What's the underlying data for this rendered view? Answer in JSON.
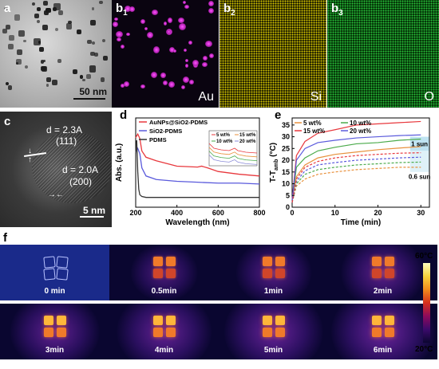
{
  "panels": {
    "a": {
      "label": "a",
      "scalebar": "50 nm"
    },
    "b1": {
      "label": "b",
      "sub": "1",
      "element": "Au"
    },
    "b2": {
      "label": "b",
      "sub": "2",
      "element": "Si"
    },
    "b3": {
      "label": "b",
      "sub": "3",
      "element": "O"
    },
    "c": {
      "label": "c",
      "d1": "d = 2.3A",
      "plane1": "(111)",
      "d2": "d = 2.0A",
      "plane2": "(200)",
      "scalebar": "5 nm"
    },
    "d": {
      "label": "d"
    },
    "e": {
      "label": "e"
    },
    "f": {
      "label": "f"
    }
  },
  "chart_data": [
    {
      "type": "line",
      "xlabel": "Wavelength (nm)",
      "ylabel": "Abs. (a.u.)",
      "xlim": [
        200,
        800
      ],
      "xticks": [
        "200",
        "400",
        "600",
        "800"
      ],
      "legend": [
        "AuNPs@SiO2-PDMS",
        "SiO2-PDMS",
        "PDMS"
      ],
      "series": [
        {
          "name": "AuNPs@SiO2-PDMS",
          "color": "#e8383d",
          "x": [
            200,
            210,
            220,
            230,
            250,
            300,
            400,
            500,
            520,
            550,
            600,
            700,
            800
          ],
          "y": [
            0.78,
            0.82,
            0.77,
            0.63,
            0.56,
            0.52,
            0.46,
            0.45,
            0.46,
            0.44,
            0.4,
            0.37,
            0.35
          ]
        },
        {
          "name": "SiO2-PDMS",
          "color": "#5a5adc",
          "x": [
            200,
            210,
            220,
            230,
            250,
            300,
            400,
            500,
            600,
            700,
            800
          ],
          "y": [
            0.62,
            0.66,
            0.6,
            0.44,
            0.35,
            0.31,
            0.29,
            0.28,
            0.27,
            0.27,
            0.26
          ]
        },
        {
          "name": "PDMS",
          "color": "#333333",
          "x": [
            200,
            205,
            210,
            215,
            220,
            230,
            250,
            300,
            400,
            500,
            600,
            700,
            800
          ],
          "y": [
            0.6,
            0.75,
            0.4,
            0.2,
            0.14,
            0.12,
            0.11,
            0.11,
            0.11,
            0.11,
            0.11,
            0.11,
            0.11
          ]
        }
      ],
      "inset": {
        "legend": [
          "5 wt%",
          "15 wt%",
          "10 wt%",
          "20 wt%"
        ],
        "colors": [
          "#e8383d",
          "#e8913d",
          "#4aaa4a",
          "#8a8ad8"
        ]
      }
    },
    {
      "type": "line",
      "xlabel": "Time (min)",
      "ylabel": "T-T",
      "ylabel_sub": "amb",
      "ylabel_unit": " (°C)",
      "xlim": [
        0,
        32
      ],
      "ylim": [
        0,
        38
      ],
      "xticks": [
        "0",
        "10",
        "20",
        "30"
      ],
      "yticks": [
        "0",
        "5",
        "10",
        "15",
        "20",
        "25",
        "30",
        "35"
      ],
      "legend": [
        "5 wt%",
        "10 wt%",
        "15 wt%",
        "20 wt%"
      ],
      "annotations": [
        "1 sun",
        "0.6 sun"
      ],
      "series": [
        {
          "name": "5 wt%",
          "color": "#e8913d",
          "t": [
            0,
            1,
            3,
            6,
            10,
            15,
            20,
            25,
            30
          ],
          "y": [
            3,
            13,
            18,
            21,
            22.5,
            23.5,
            24.5,
            25.2,
            25.8
          ]
        },
        {
          "name": "10 wt%",
          "color": "#4aaa4a",
          "t": [
            0,
            1,
            3,
            6,
            10,
            15,
            20,
            25,
            30
          ],
          "y": [
            3,
            17,
            21,
            24,
            25.5,
            27,
            27.5,
            28.5,
            29
          ]
        },
        {
          "name": "15 wt%",
          "color": "#e8383d",
          "t": [
            0,
            1,
            3,
            6,
            10,
            15,
            20,
            25,
            30
          ],
          "y": [
            3,
            22,
            28,
            31.5,
            33,
            35,
            35.5,
            36,
            36.5
          ]
        },
        {
          "name": "20 wt%",
          "color": "#5a5adc",
          "t": [
            0,
            1,
            3,
            6,
            10,
            15,
            20,
            25,
            30
          ],
          "y": [
            3,
            20,
            25,
            27.5,
            28.5,
            29.5,
            30,
            30.5,
            30.8
          ]
        },
        {
          "name": "",
          "color": "#e8913d",
          "dashed": true,
          "t": [
            0,
            1,
            3,
            6,
            10,
            15,
            20,
            25,
            30
          ],
          "y": [
            2,
            9,
            12,
            14,
            15,
            16,
            16.5,
            17,
            17
          ]
        },
        {
          "name": "",
          "color": "#4aaa4a",
          "dashed": true,
          "t": [
            0,
            1,
            3,
            6,
            10,
            15,
            20,
            25,
            30
          ],
          "y": [
            2,
            10,
            14,
            16,
            17,
            18,
            18.5,
            19,
            19.2
          ]
        },
        {
          "name": "",
          "color": "#5a5adc",
          "dashed": true,
          "t": [
            0,
            1,
            3,
            6,
            10,
            15,
            20,
            25,
            30
          ],
          "y": [
            2,
            11,
            15.5,
            18,
            19,
            20,
            20.5,
            21,
            21.3
          ]
        },
        {
          "name": "",
          "color": "#e8383d",
          "dashed": true,
          "t": [
            0,
            1,
            3,
            6,
            10,
            15,
            20,
            25,
            30
          ],
          "y": [
            2,
            12,
            17,
            19.5,
            21,
            22,
            22.5,
            23,
            23.2
          ]
        }
      ]
    }
  ],
  "thermal": {
    "colorbar_max": "60°C",
    "colorbar_min": "20°C",
    "frames": [
      {
        "time": "0 min",
        "intensity": 0.0
      },
      {
        "time": "0.5min",
        "intensity": 0.35
      },
      {
        "time": "1min",
        "intensity": 0.5
      },
      {
        "time": "2min",
        "intensity": 0.65
      },
      {
        "time": "3min",
        "intensity": 0.75
      },
      {
        "time": "4min",
        "intensity": 0.85
      },
      {
        "time": "5min",
        "intensity": 0.92
      },
      {
        "time": "6min",
        "intensity": 1.0
      }
    ]
  }
}
